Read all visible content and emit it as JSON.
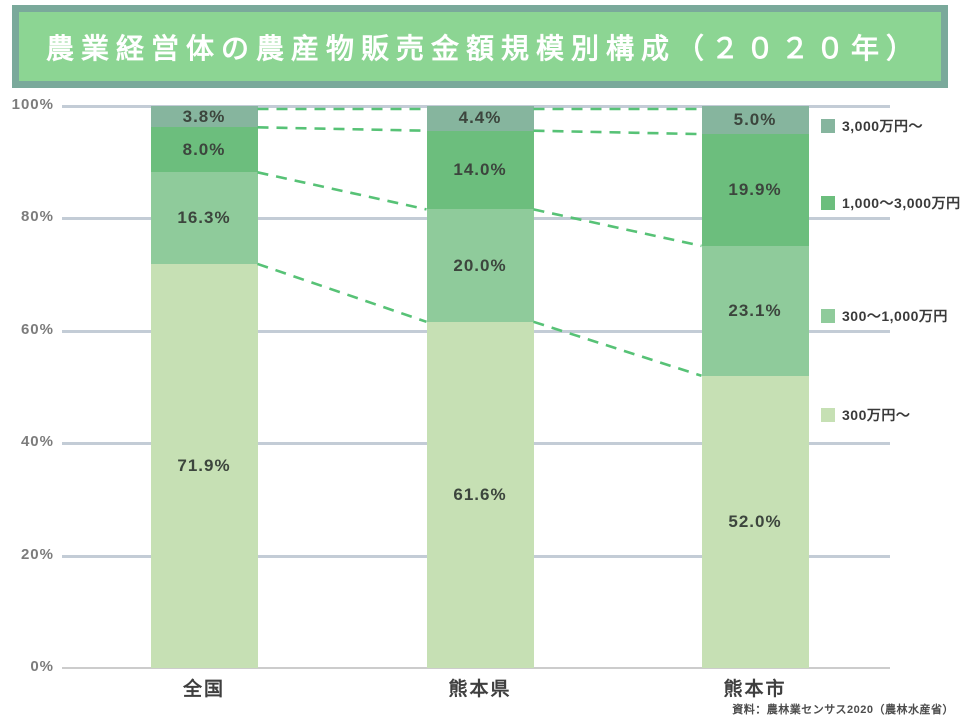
{
  "title": "農業経営体の農産物販売金額規模別構成（２０２０年）",
  "source": "資料：農林業センサス2020（農林水産省）",
  "colors": {
    "title_bg": "#8cd593",
    "title_border": "#7aa99b",
    "grid": "#c3ccd6",
    "axis_zero": "#cccccc",
    "dashed_connector": "#57c276",
    "segment_label_text": "#3c453d",
    "series": [
      "#86b59e",
      "#6cbe7d",
      "#8fcb9b",
      "#c6e0b4"
    ]
  },
  "chart_data": {
    "type": "bar",
    "stacked": true,
    "percent_stacked": true,
    "unit": "%",
    "title": "農業経営体の農産物販売金額規模別構成（２０２０年）",
    "categories": [
      "全国",
      "熊本県",
      "熊本市"
    ],
    "series": [
      {
        "name": "3,000万円～",
        "color": "#86b59e",
        "values": [
          3.8,
          4.4,
          5.0
        ],
        "labels": [
          "3.8%",
          "4.4%",
          "5.0%"
        ]
      },
      {
        "name": "1,000～3,000万円",
        "color": "#6cbe7d",
        "values": [
          8.0,
          14.0,
          19.9
        ],
        "labels": [
          "8.0%",
          "14.0%",
          "19.9%"
        ]
      },
      {
        "name": "300～1,000万円",
        "color": "#8fcb9b",
        "values": [
          16.3,
          20.0,
          23.1
        ],
        "labels": [
          "16.3%",
          "20.0%",
          "23.1%"
        ]
      },
      {
        "name": "300万円～",
        "color": "#c6e0b4",
        "values": [
          71.9,
          61.6,
          52.0
        ],
        "labels": [
          "71.9%",
          "61.6%",
          "52.0%"
        ]
      }
    ],
    "y_ticks": [
      "100%",
      "80%",
      "60%",
      "40%",
      "20%",
      "0%"
    ],
    "ylim": [
      0,
      100
    ],
    "grid": true,
    "legend_position": "right",
    "connector_lines": "dashed lines join segment boundaries of adjacent bars"
  }
}
